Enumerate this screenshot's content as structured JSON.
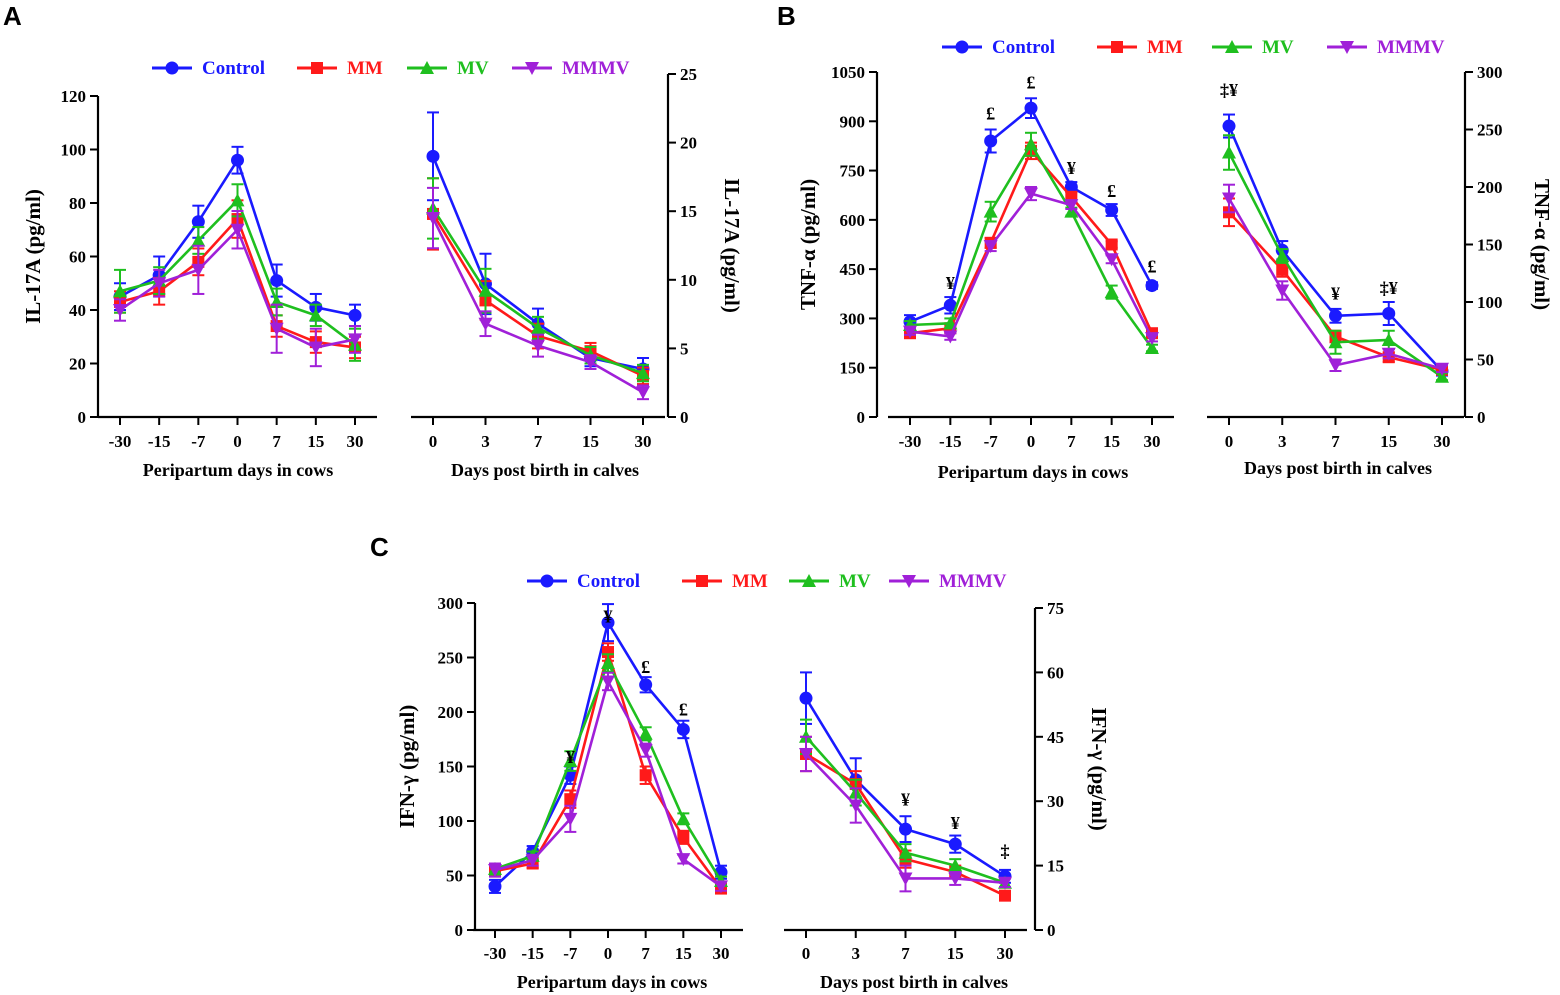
{
  "colors": {
    "Control": "#1a1aff",
    "MM": "#ff1a1a",
    "MV": "#1fbf1f",
    "MMMV": "#a020d8"
  },
  "panels": [
    {
      "letter": "A",
      "legend": [
        "Control",
        "MM",
        "MV",
        "MMMV"
      ]
    },
    {
      "letter": "B",
      "legend": [
        "Control",
        "MM",
        "MV",
        "MMMV"
      ]
    },
    {
      "letter": "C",
      "legend": [
        "Control",
        "MM",
        "MV",
        "MMMV"
      ]
    }
  ],
  "chart_data": [
    {
      "panel": "A",
      "side": "cows",
      "type": "line",
      "categories": [
        "-30",
        "-15",
        "-7",
        "0",
        "7",
        "15",
        "30"
      ],
      "ylabel": "IL-17A (pg/ml)",
      "xlabel": "Peripartum days in cows",
      "ylim": [
        0,
        120
      ],
      "yticks": [
        "0",
        "20",
        "40",
        "60",
        "80",
        "100",
        "120"
      ],
      "series": [
        {
          "name": "Control",
          "values": [
            45,
            53,
            73,
            96,
            51,
            41,
            38
          ],
          "err": [
            5,
            7,
            6,
            5,
            6,
            5,
            4
          ]
        },
        {
          "name": "MM",
          "values": [
            43,
            47,
            58,
            74,
            34,
            28,
            26
          ],
          "err": [
            4,
            5,
            5,
            7,
            4,
            4,
            4
          ]
        },
        {
          "name": "MV",
          "values": [
            47,
            51,
            66,
            81,
            43,
            38,
            27
          ],
          "err": [
            8,
            5,
            5,
            6,
            5,
            4,
            6
          ]
        },
        {
          "name": "MMMV",
          "values": [
            40,
            50,
            55,
            70,
            33,
            26,
            29
          ],
          "err": [
            4,
            5,
            9,
            7,
            9,
            7,
            5
          ]
        }
      ],
      "annotations": []
    },
    {
      "panel": "A",
      "side": "calves",
      "type": "line",
      "categories": [
        "0",
        "3",
        "7",
        "15",
        "30"
      ],
      "ylabel": "IL-17A (pg/ml)",
      "xlabel": "Days post birth in calves",
      "ylim": [
        0,
        25
      ],
      "yticks": [
        "0",
        "5",
        "10",
        "15",
        "20",
        "25"
      ],
      "series": [
        {
          "name": "Control",
          "values": [
            19,
            9.7,
            6.8,
            4.3,
            3.5
          ],
          "err": [
            3.2,
            2.2,
            1.1,
            0.6,
            0.8
          ]
        },
        {
          "name": "MM",
          "values": [
            14.8,
            8.5,
            5.9,
            4.8,
            3.0
          ],
          "err": [
            2.6,
            1.4,
            0.9,
            0.6,
            0.6
          ]
        },
        {
          "name": "MV",
          "values": [
            15.2,
            9.2,
            6.5,
            4.5,
            3.2
          ],
          "err": [
            2.2,
            1.6,
            0.8,
            0.6,
            0.6
          ]
        },
        {
          "name": "MMMV",
          "values": [
            14.5,
            6.8,
            5.2,
            4.0,
            1.8
          ],
          "err": [
            2.2,
            0.9,
            0.8,
            0.5,
            0.5
          ]
        }
      ],
      "annotations": []
    },
    {
      "panel": "B",
      "side": "cows",
      "type": "line",
      "categories": [
        "-30",
        "-15",
        "-7",
        "0",
        "7",
        "15",
        "30"
      ],
      "ylabel": "TNF-α (pg/ml)",
      "xlabel": "Peripartum days in cows",
      "ylim": [
        0,
        1050
      ],
      "yticks": [
        "0",
        "150",
        "300",
        "450",
        "600",
        "750",
        "900",
        "1050"
      ],
      "series": [
        {
          "name": "Control",
          "values": [
            290,
            340,
            840,
            940,
            700,
            630,
            400
          ],
          "err": [
            20,
            25,
            35,
            30,
            15,
            18,
            10
          ]
        },
        {
          "name": "MM",
          "values": [
            255,
            270,
            530,
            810,
            670,
            525,
            255
          ],
          "err": [
            12,
            12,
            15,
            25,
            15,
            10,
            10
          ]
        },
        {
          "name": "MV",
          "values": [
            280,
            285,
            625,
            830,
            625,
            380,
            210
          ],
          "err": [
            12,
            15,
            30,
            35,
            12,
            20,
            10
          ]
        },
        {
          "name": "MMMV",
          "values": [
            260,
            245,
            520,
            680,
            645,
            480,
            240
          ],
          "err": [
            10,
            10,
            15,
            20,
            12,
            12,
            10
          ]
        }
      ],
      "annotations": [
        {
          "x": "-15",
          "text": "¥",
          "y": 390
        },
        {
          "x": "-7",
          "text": "£",
          "y": 905
        },
        {
          "x": "0",
          "text": "£",
          "y": 1000
        },
        {
          "x": "7",
          "text": "¥",
          "y": 740
        },
        {
          "x": "15",
          "text": "£",
          "y": 670
        },
        {
          "x": "30",
          "text": "£",
          "y": 440
        }
      ]
    },
    {
      "panel": "B",
      "side": "calves",
      "type": "line",
      "categories": [
        "0",
        "3",
        "7",
        "15",
        "30"
      ],
      "ylabel": "TNF-α (pg/ml)",
      "xlabel": "Days post birth in calves",
      "ylim": [
        0,
        300
      ],
      "yticks": [
        "0",
        "50",
        "100",
        "150",
        "200",
        "250",
        "300"
      ],
      "series": [
        {
          "name": "Control",
          "values": [
            253,
            145,
            88,
            90,
            40
          ],
          "err": [
            10,
            8,
            6,
            10,
            4
          ]
        },
        {
          "name": "MM",
          "values": [
            178,
            128,
            70,
            52,
            41
          ],
          "err": [
            12,
            6,
            5,
            4,
            3
          ]
        },
        {
          "name": "MV",
          "values": [
            230,
            140,
            65,
            67,
            35
          ],
          "err": [
            15,
            6,
            10,
            8,
            3
          ]
        },
        {
          "name": "MMMV",
          "values": [
            190,
            110,
            45,
            55,
            42
          ],
          "err": [
            12,
            8,
            5,
            4,
            3
          ]
        }
      ],
      "annotations": [
        {
          "x": "0",
          "text": "‡¥",
          "y": 279
        },
        {
          "x": "7",
          "text": "¥",
          "y": 102
        },
        {
          "x": "15",
          "text": "‡¥",
          "y": 107
        }
      ]
    },
    {
      "panel": "C",
      "side": "cows",
      "type": "line",
      "categories": [
        "-30",
        "-15",
        "-7",
        "0",
        "7",
        "15",
        "30"
      ],
      "ylabel": "IFN-γ (pg/ml)",
      "xlabel": "Peripartum days in cows",
      "ylim": [
        0,
        300
      ],
      "yticks": [
        "0",
        "50",
        "100",
        "150",
        "200",
        "250",
        "300"
      ],
      "series": [
        {
          "name": "Control",
          "values": [
            40,
            72,
            142,
            282,
            225,
            184,
            53
          ],
          "err": [
            6,
            5,
            8,
            17,
            7,
            8,
            6
          ]
        },
        {
          "name": "MM",
          "values": [
            54,
            61,
            120,
            255,
            142,
            85,
            38
          ],
          "err": [
            5,
            4,
            8,
            8,
            8,
            6,
            4
          ]
        },
        {
          "name": "MV",
          "values": [
            56,
            68,
            155,
            245,
            180,
            102,
            45
          ],
          "err": [
            5,
            4,
            9,
            8,
            6,
            5,
            4
          ]
        },
        {
          "name": "MMMV",
          "values": [
            55,
            64,
            102,
            228,
            165,
            65,
            40
          ],
          "err": [
            6,
            5,
            12,
            8,
            6,
            4,
            4
          ]
        }
      ],
      "annotations": [
        {
          "x": "-7",
          "text": "¥",
          "y": 153
        },
        {
          "x": "0",
          "text": "¥",
          "y": 282
        },
        {
          "x": "7",
          "text": "£",
          "y": 236
        },
        {
          "x": "15",
          "text": "£",
          "y": 197
        }
      ]
    },
    {
      "panel": "C",
      "side": "calves",
      "type": "line",
      "categories": [
        "0",
        "3",
        "7",
        "15",
        "30"
      ],
      "ylabel": "IFN-γ (pg/ml)",
      "xlabel": "Days post birth in calves",
      "ylim": [
        0,
        75
      ],
      "yticks": [
        "0",
        "15",
        "30",
        "45",
        "60",
        "75"
      ],
      "series": [
        {
          "name": "Control",
          "values": [
            54,
            35,
            23.5,
            20,
            12.5
          ],
          "err": [
            6,
            5,
            3,
            2,
            1.5
          ]
        },
        {
          "name": "MM",
          "values": [
            41,
            34,
            16.5,
            13.5,
            8
          ],
          "err": [
            4,
            3,
            2,
            1.5,
            1
          ]
        },
        {
          "name": "MV",
          "values": [
            45,
            32,
            18,
            15,
            11
          ],
          "err": [
            4,
            3,
            2,
            1.5,
            1
          ]
        },
        {
          "name": "MMMV",
          "values": [
            41,
            29,
            12,
            12,
            11
          ],
          "err": [
            4,
            4,
            3,
            1.5,
            1
          ]
        }
      ],
      "annotations": [
        {
          "x": "7",
          "text": "¥",
          "y": 29
        },
        {
          "x": "15",
          "text": "¥",
          "y": 23.5
        },
        {
          "x": "30",
          "text": "‡",
          "y": 17
        }
      ]
    }
  ]
}
